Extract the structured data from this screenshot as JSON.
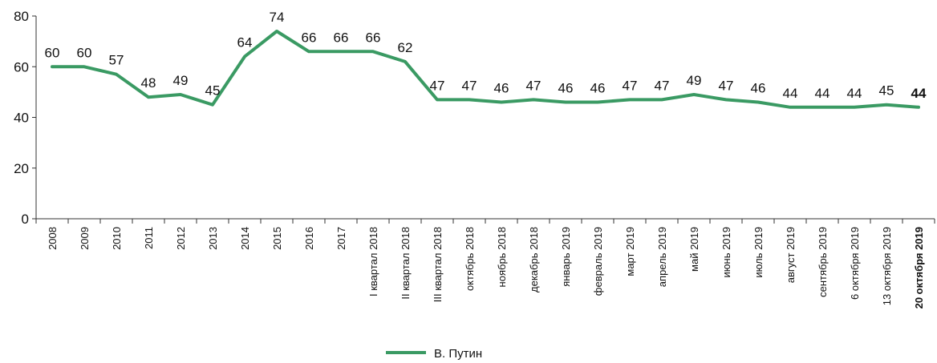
{
  "chart_data": {
    "type": "line",
    "title": "",
    "xlabel": "",
    "ylabel": "",
    "ylim": [
      0,
      80
    ],
    "yticks": [
      0,
      20,
      40,
      60,
      80
    ],
    "grid": false,
    "legend_position": "bottom-center",
    "colors": {
      "series": "#3a9a63"
    },
    "categories": [
      "2008",
      "2009",
      "2010",
      "2011",
      "2012",
      "2013",
      "2014",
      "2015",
      "2016",
      "2017",
      "I квартал 2018",
      "II квартал 2018",
      "III квартал 2018",
      "октябрь 2018",
      "ноябрь 2018",
      "декабрь 2018",
      "январь 2019",
      "февраль 2019",
      "март 2019",
      "апрель 2019",
      "май 2019",
      "июнь 2019",
      "июль 2019",
      "август 2019",
      "сентябрь 2019",
      "6 октября 2019",
      "13 октября 2019",
      "20 октября 2019"
    ],
    "bold_categories": [
      "20 октября 2019"
    ],
    "series": [
      {
        "name": "В. Путин",
        "values": [
          60,
          60,
          57,
          48,
          49,
          45,
          64,
          74,
          66,
          66,
          66,
          62,
          47,
          47,
          46,
          47,
          46,
          46,
          47,
          47,
          49,
          47,
          46,
          44,
          44,
          44,
          45,
          44
        ],
        "labels": [
          "60",
          "60",
          "57",
          "48",
          "49",
          "45",
          "64",
          "74",
          "66",
          "66",
          "66",
          "62",
          "47",
          "47",
          "46",
          "47",
          "46",
          "46",
          "47",
          "47",
          "49",
          "47",
          "46",
          "44",
          "44",
          "44",
          "45",
          "44"
        ]
      }
    ]
  }
}
